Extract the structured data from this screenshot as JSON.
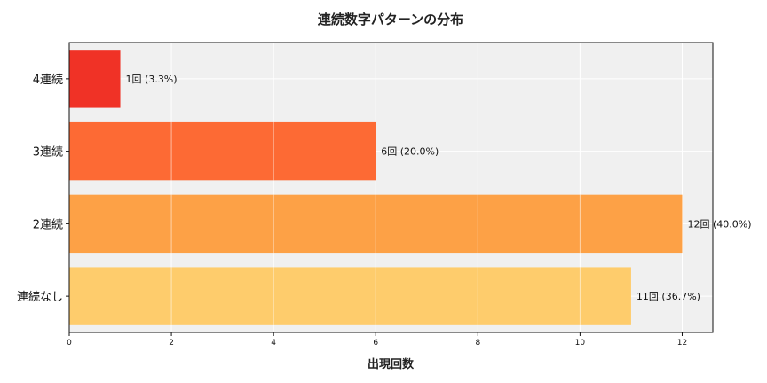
{
  "chart_data": {
    "type": "bar",
    "orientation": "horizontal",
    "title": "連続数字パターンの分布",
    "xlabel": "出現回数",
    "ylabel": "",
    "categories": [
      "4連続",
      "3連続",
      "2連続",
      "連続なし"
    ],
    "values": [
      1,
      6,
      12,
      11
    ],
    "data_labels": [
      "1回 (3.3%)",
      "6回 (20.0%)",
      "12回 (40.0%)",
      "11回 (36.7%)"
    ],
    "colors": [
      "#f03226",
      "#fd6a34",
      "#fda146",
      "#fecc6c"
    ],
    "xlim": [
      0,
      12.6
    ],
    "xticks": [
      0,
      2,
      4,
      6,
      8,
      10,
      12
    ],
    "grid": true,
    "background": "#f0f0f0"
  }
}
